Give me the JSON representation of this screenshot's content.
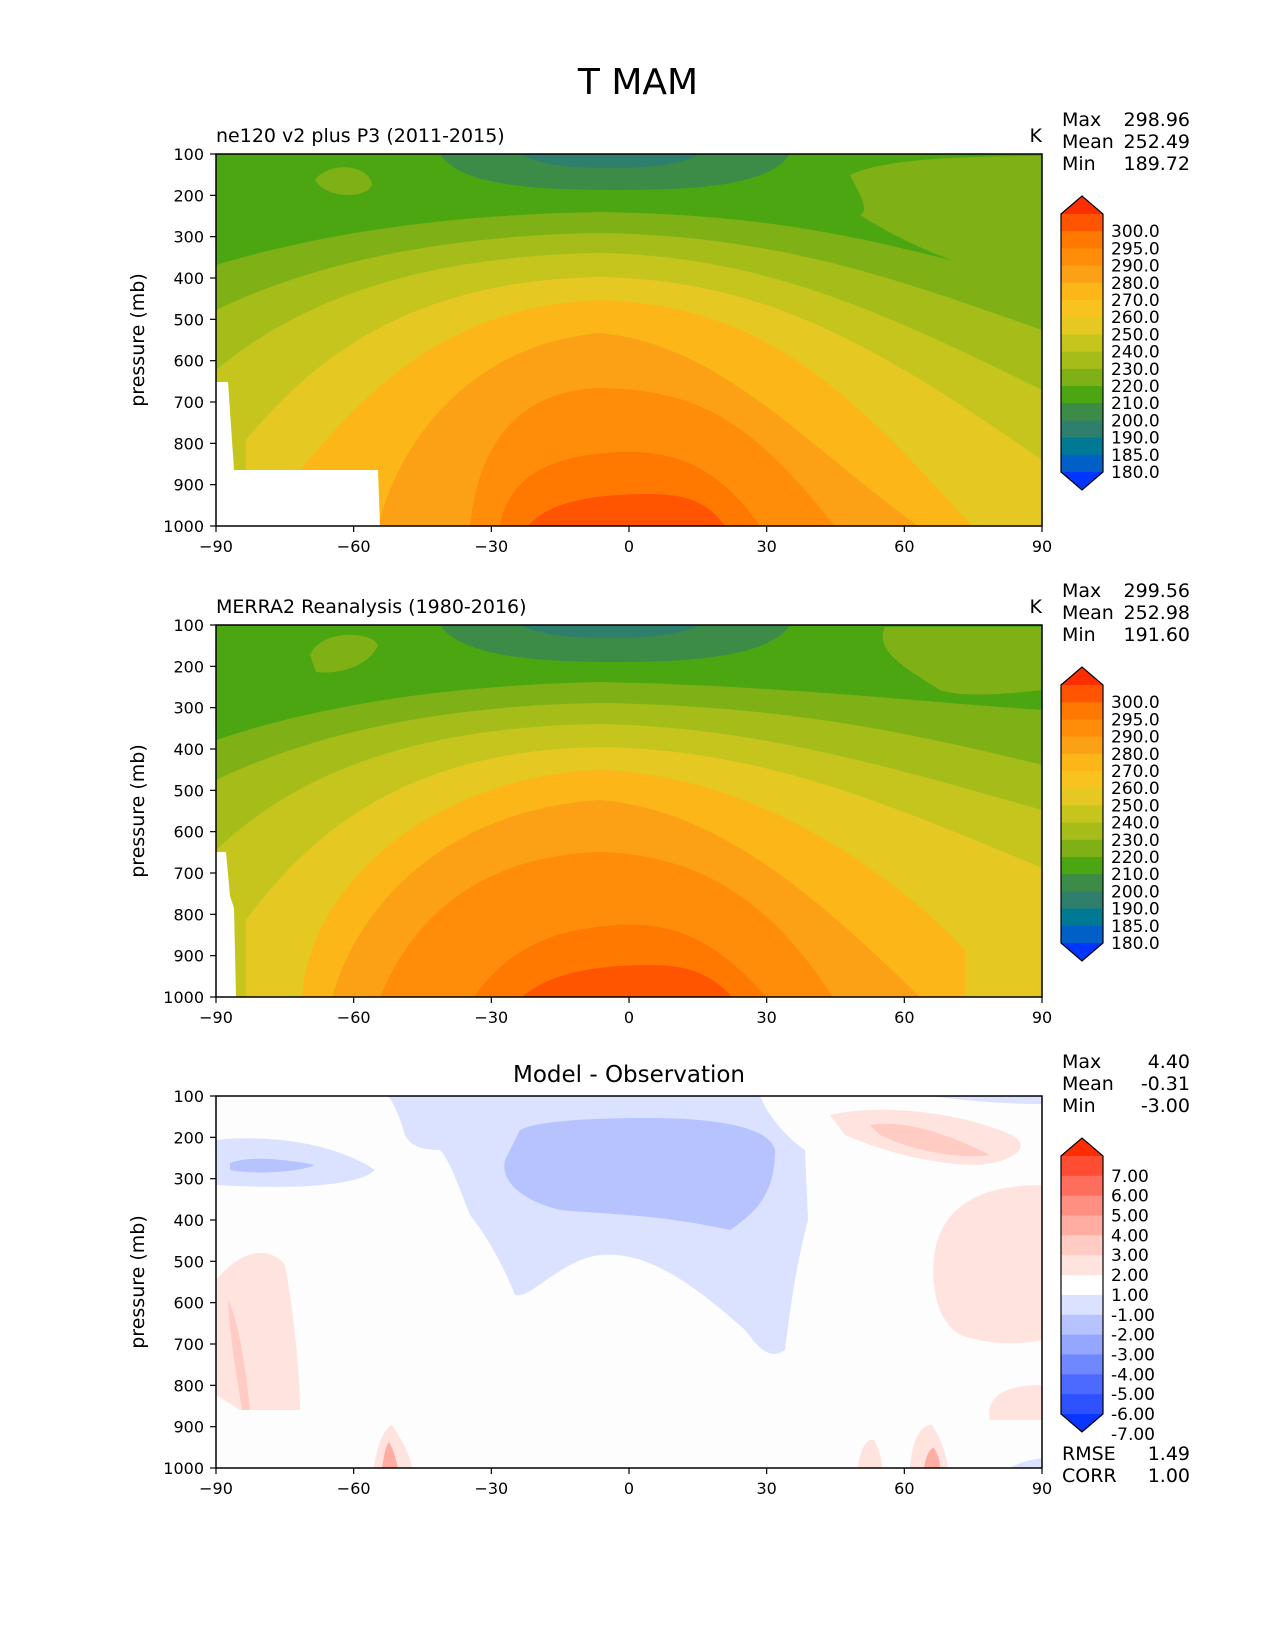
{
  "figure": {
    "title": "T MAM"
  },
  "chart_data": [
    {
      "type": "contour",
      "panel": "model",
      "title": "ne120 v2 plus P3 (2011-2015)",
      "units": "K",
      "xlabel": "",
      "ylabel": "pressure (mb)",
      "xlim": [
        -90,
        90
      ],
      "ylim": [
        1000,
        100
      ],
      "xticks": [
        "−90",
        "−60",
        "−30",
        "0",
        "30",
        "60",
        "90"
      ],
      "yticks": [
        "100",
        "200",
        "300",
        "400",
        "500",
        "600",
        "700",
        "800",
        "900",
        "1000"
      ],
      "stats": [
        {
          "label": "Max",
          "value": "298.96"
        },
        {
          "label": "Mean",
          "value": "252.49"
        },
        {
          "label": "Min",
          "value": "189.72"
        }
      ],
      "colorbar": {
        "levels": [
          "300.0",
          "295.0",
          "290.0",
          "280.0",
          "270.0",
          "260.0",
          "250.0",
          "240.0",
          "230.0",
          "220.0",
          "210.0",
          "200.0",
          "190.0",
          "185.0",
          "180.0"
        ],
        "colors": [
          "#ff2d00",
          "#ff5400",
          "#ff7800",
          "#ff8d0a",
          "#fca116",
          "#fcb618",
          "#f9c31f",
          "#e6c823",
          "#c5c51d",
          "#a6bd19",
          "#7fb116",
          "#4ba612",
          "#3c8c47",
          "#2f7f6d",
          "#007a94",
          "#0060c8",
          "#0035ff"
        ]
      },
      "extrema_location": {
        "max": "lower tropics near 0°, 1000 mb",
        "min": "upper tropics near 0°, 100 mb"
      }
    },
    {
      "type": "contour",
      "panel": "observation",
      "title": "MERRA2 Reanalysis (1980-2016)",
      "units": "K",
      "xlabel": "",
      "ylabel": "pressure (mb)",
      "xlim": [
        -90,
        90
      ],
      "ylim": [
        1000,
        100
      ],
      "xticks": [
        "−90",
        "−60",
        "−30",
        "0",
        "30",
        "60",
        "90"
      ],
      "yticks": [
        "100",
        "200",
        "300",
        "400",
        "500",
        "600",
        "700",
        "800",
        "900",
        "1000"
      ],
      "stats": [
        {
          "label": "Max",
          "value": "299.56"
        },
        {
          "label": "Mean",
          "value": "252.98"
        },
        {
          "label": "Min",
          "value": "191.60"
        }
      ],
      "colorbar": {
        "levels": [
          "300.0",
          "295.0",
          "290.0",
          "280.0",
          "270.0",
          "260.0",
          "250.0",
          "240.0",
          "230.0",
          "220.0",
          "210.0",
          "200.0",
          "190.0",
          "185.0",
          "180.0"
        ],
        "colors": [
          "#ff2d00",
          "#ff5400",
          "#ff7800",
          "#ff8d0a",
          "#fca116",
          "#fcb618",
          "#f9c31f",
          "#e6c823",
          "#c5c51d",
          "#a6bd19",
          "#7fb116",
          "#4ba612",
          "#3c8c47",
          "#2f7f6d",
          "#007a94",
          "#0060c8",
          "#0035ff"
        ]
      }
    },
    {
      "type": "contour",
      "panel": "difference",
      "title": "Model - Observation",
      "units": "",
      "xlabel": "",
      "ylabel": "pressure (mb)",
      "xlim": [
        -90,
        90
      ],
      "ylim": [
        1000,
        100
      ],
      "xticks": [
        "−90",
        "−60",
        "−30",
        "0",
        "30",
        "60",
        "90"
      ],
      "yticks": [
        "100",
        "200",
        "300",
        "400",
        "500",
        "600",
        "700",
        "800",
        "900",
        "1000"
      ],
      "stats": [
        {
          "label": "Max",
          "value": "4.40"
        },
        {
          "label": "Mean",
          "value": "-0.31"
        },
        {
          "label": "Min",
          "value": "-3.00"
        }
      ],
      "extra_stats": [
        {
          "label": "RMSE",
          "value": "1.49"
        },
        {
          "label": "CORR",
          "value": "1.00"
        }
      ],
      "colorbar": {
        "levels": [
          "7.00",
          "6.00",
          "5.00",
          "4.00",
          "3.00",
          "2.00",
          "1.00",
          "-1.00",
          "-2.00",
          "-3.00",
          "-4.00",
          "-5.00",
          "-6.00",
          "-7.00"
        ],
        "colors": [
          "#ff2d00",
          "#ff4d33",
          "#ff6e5c",
          "#ff8f80",
          "#ffada2",
          "#ffcbc3",
          "#ffe3de",
          "#ffffff",
          "#dbe2ff",
          "#b7c3ff",
          "#94a6ff",
          "#7088ff",
          "#4c6aff",
          "#2e52ff",
          "#0a35ff"
        ]
      }
    }
  ]
}
